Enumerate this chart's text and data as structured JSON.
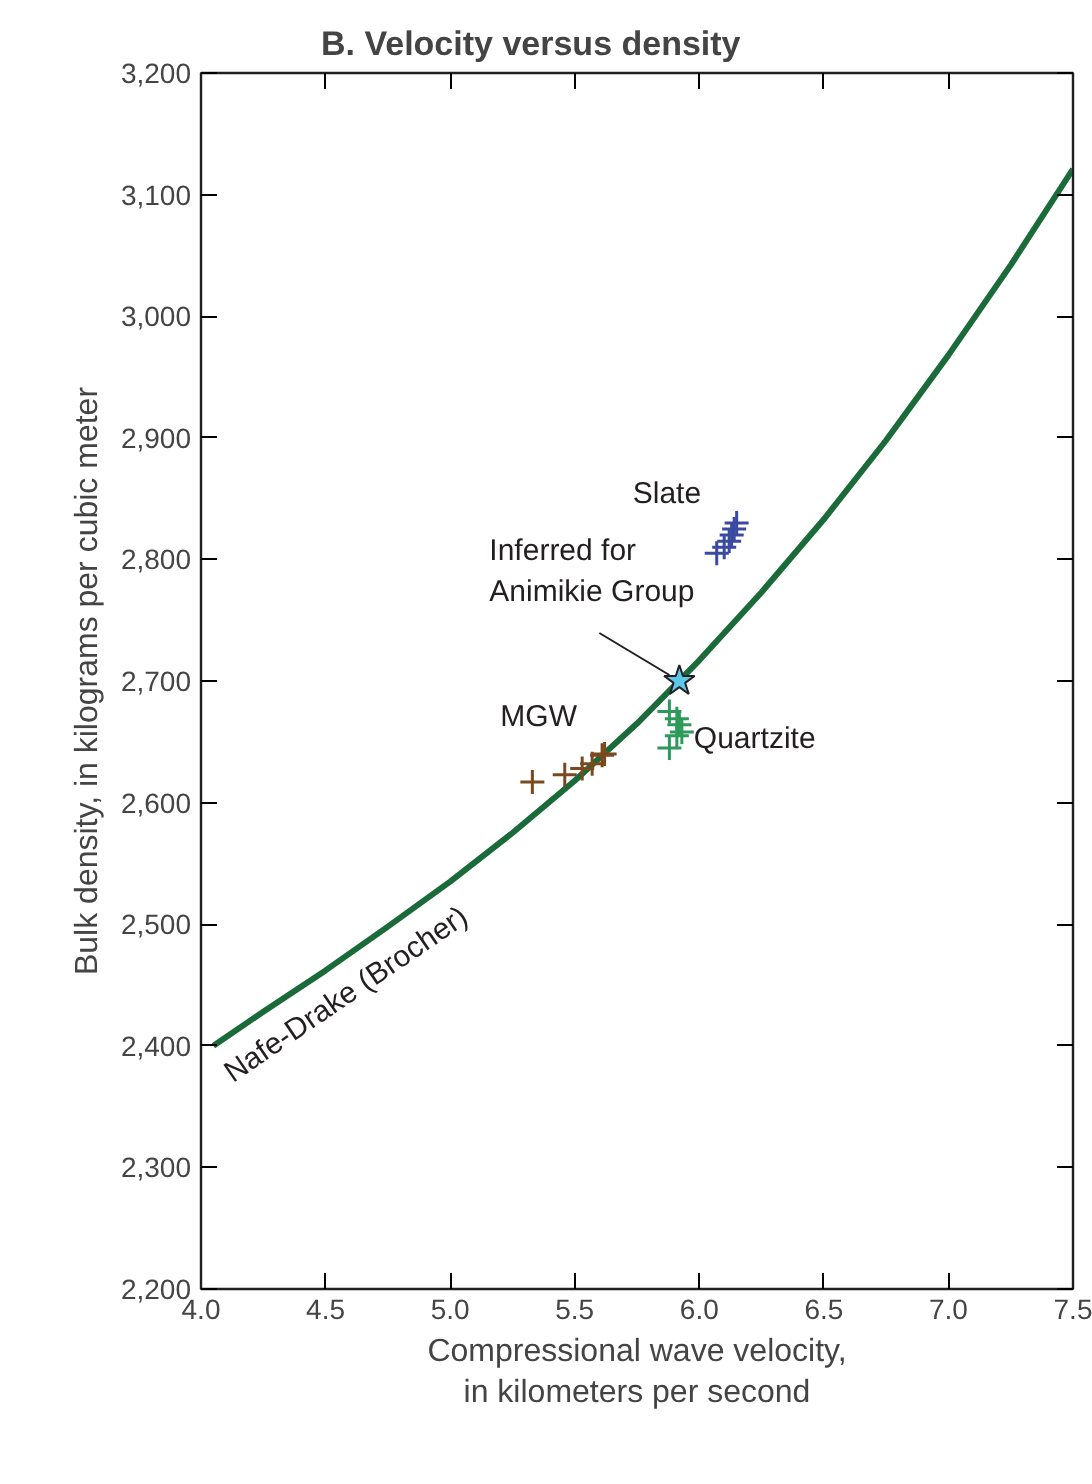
{
  "chart_data": {
    "type": "scatter",
    "title": "B.  Velocity versus density",
    "xlabel": "Compressional wave velocity,\nin kilometers per second",
    "ylabel": "Bulk density, in kilograms per cubic meter",
    "xlim": [
      4.0,
      7.5
    ],
    "ylim": [
      2200,
      3200
    ],
    "xticks": [
      {
        "value": 4.0,
        "label": "4.0"
      },
      4.5,
      {
        "value": 5.0,
        "label": "5.0"
      },
      5.5,
      {
        "value": 6.0,
        "label": "6.0"
      },
      6.5,
      {
        "value": 7.0,
        "label": "7.0"
      },
      7.5
    ],
    "yticks": [
      {
        "value": 2200,
        "label": "2,200"
      },
      {
        "value": 2300,
        "label": "2,300"
      },
      {
        "value": 2400,
        "label": "2,400"
      },
      {
        "value": 2500,
        "label": "2,500"
      },
      {
        "value": 2600,
        "label": "2,600"
      },
      {
        "value": 2700,
        "label": "2,700"
      },
      {
        "value": 2800,
        "label": "2,800"
      },
      {
        "value": 2900,
        "label": "2,900"
      },
      {
        "value": 3000,
        "label": "3,000"
      },
      {
        "value": 3100,
        "label": "3,100"
      },
      {
        "value": 3200,
        "label": "3,200"
      }
    ],
    "grid": false,
    "series": [
      {
        "name": "Nafe-Drake (Brocher)",
        "type": "line",
        "color": "#1b6b3a",
        "line_style": "solid",
        "x": [
          4.05,
          4.25,
          4.5,
          4.75,
          5.0,
          5.25,
          5.5,
          5.75,
          6.0,
          6.25,
          6.5,
          6.75,
          7.0,
          7.25,
          7.5
        ],
        "values": [
          2400,
          2428,
          2462,
          2498,
          2535,
          2575,
          2618,
          2665,
          2717,
          2773,
          2833,
          2898,
          2968,
          3042,
          3121
        ]
      },
      {
        "name": "Slate",
        "color": "#3a4aa0",
        "marker": "cross",
        "x": [
          6.07,
          6.1,
          6.12,
          6.13,
          6.14,
          6.15
        ],
        "values": [
          2805,
          2810,
          2815,
          2820,
          2825,
          2830
        ]
      },
      {
        "name": "MGW",
        "color": "#7a4a1e",
        "marker": "cross",
        "x": [
          5.33,
          5.46,
          5.53,
          5.57,
          5.61,
          5.62
        ],
        "values": [
          2617,
          2623,
          2628,
          2632,
          2639,
          2640
        ]
      },
      {
        "name": "Quartzite",
        "color": "#2e9a5a",
        "marker": "cross",
        "x": [
          5.88,
          5.91,
          5.92,
          5.93,
          5.91,
          5.88
        ],
        "values": [
          2675,
          2669,
          2664,
          2658,
          2655,
          2645
        ]
      },
      {
        "name": "Inferred for\nAnimikie Group",
        "color": "#5bc8e8",
        "marker": "star",
        "x": [
          5.92
        ],
        "values": [
          2700
        ]
      }
    ]
  }
}
